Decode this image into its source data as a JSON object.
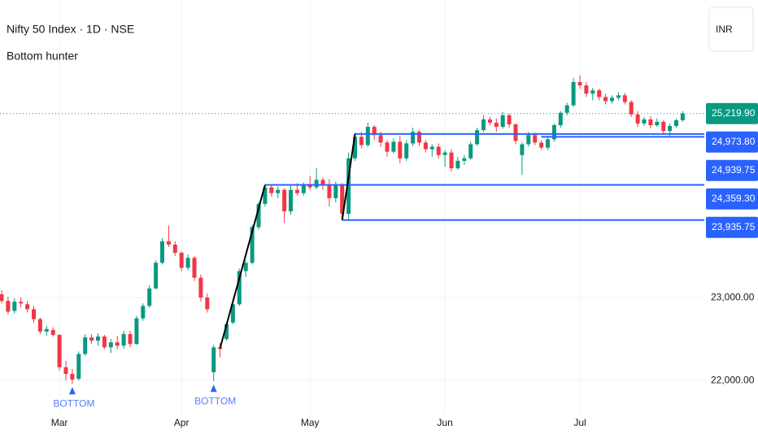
{
  "chart_data": {
    "type": "candlestick",
    "title": "Nifty 50 Index · 1D · NSE",
    "subtitle": "Bottom hunter",
    "currency": "INR",
    "up_color": "#089981",
    "down_color": "#f23645",
    "level_color": "#2962ff",
    "segment_color": "#000000",
    "ylim": [
      21590,
      26590
    ],
    "yticks": [
      {
        "value": 22000,
        "label": "22,000.00"
      },
      {
        "value": 23000,
        "label": "23,000.00"
      }
    ],
    "grid": true,
    "categories": [
      null,
      null,
      null,
      null,
      null,
      null,
      null,
      null,
      null,
      "Mar",
      null,
      null,
      null,
      null,
      null,
      null,
      null,
      null,
      null,
      null,
      null,
      null,
      null,
      null,
      null,
      null,
      null,
      null,
      "Apr",
      null,
      null,
      null,
      null,
      null,
      null,
      null,
      null,
      null,
      null,
      null,
      null,
      null,
      null,
      null,
      null,
      null,
      null,
      null,
      "May",
      null,
      null,
      null,
      null,
      null,
      null,
      null,
      null,
      null,
      null,
      null,
      null,
      null,
      null,
      null,
      null,
      null,
      null,
      null,
      null,
      "Jun",
      null,
      null,
      null,
      null,
      null,
      null,
      null,
      null,
      null,
      null,
      null,
      null,
      null,
      null,
      null,
      null,
      null,
      null,
      null,
      null,
      "Jul",
      null,
      null,
      null,
      null,
      null,
      null,
      null,
      null,
      null,
      null,
      null,
      null,
      null,
      null,
      null,
      null
    ],
    "open": [
      23040,
      22960,
      22840,
      22950,
      22920,
      22860,
      22740,
      22590,
      22610,
      22550,
      22160,
      22080,
      22020,
      22320,
      22520,
      22480,
      22530,
      22400,
      22460,
      22420,
      22560,
      22440,
      22750,
      22900,
      23110,
      23420,
      23680,
      23640,
      23540,
      23360,
      23480,
      23240,
      23000,
      22100,
      22400,
      22500,
      22700,
      22920,
      23320,
      23420,
      23850,
      24130,
      24330,
      24260,
      24300,
      24040,
      24300,
      24260,
      24350,
      24330,
      24420,
      24350,
      24200,
      24360,
      24010,
      24680,
      24940,
      24840,
      25060,
      24960,
      24870,
      24760,
      24880,
      24680,
      24860,
      25000,
      24870,
      24790,
      24820,
      24720,
      24750,
      24560,
      24650,
      24680,
      24850,
      25020,
      25150,
      25110,
      25060,
      25200,
      25090,
      24720,
      24850,
      24960,
      24870,
      24810,
      24910,
      25080,
      25230,
      25320,
      25600,
      25560,
      25460,
      25500,
      25420,
      25370,
      25410,
      25440,
      25360,
      25210,
      25100,
      25150,
      25080,
      25120,
      25010,
      25070,
      25140
    ],
    "high": [
      23090,
      23010,
      22990,
      23000,
      22960,
      22900,
      22760,
      22660,
      22640,
      22560,
      22240,
      22140,
      22350,
      22560,
      22560,
      22570,
      22550,
      22500,
      22540,
      22600,
      22600,
      22780,
      22930,
      23150,
      23450,
      23720,
      23870,
      23680,
      23560,
      23520,
      23500,
      23280,
      23050,
      22430,
      22450,
      22700,
      22950,
      23350,
      23450,
      23880,
      24150,
      24350,
      24360,
      24340,
      24320,
      24350,
      24380,
      24390,
      24470,
      24560,
      24450,
      24430,
      24400,
      24380,
      24750,
      24990,
      25000,
      25110,
      25080,
      25000,
      24900,
      24920,
      24950,
      24900,
      25050,
      25020,
      24900,
      24850,
      24860,
      24780,
      24790,
      24700,
      24720,
      24880,
      25050,
      25200,
      25180,
      25160,
      25240,
      25220,
      25100,
      24870,
      25000,
      24990,
      24900,
      24950,
      25100,
      25250,
      25350,
      25650,
      25680,
      25600,
      25530,
      25520,
      25460,
      25440,
      25480,
      25470,
      25380,
      25250,
      25180,
      25190,
      25160,
      25140,
      25100,
      25160,
      25250
    ],
    "low": [
      22930,
      22800,
      22810,
      22880,
      22820,
      22700,
      22560,
      22540,
      22530,
      22120,
      22000,
      21960,
      22000,
      22300,
      22440,
      22420,
      22380,
      22330,
      22380,
      22380,
      22400,
      22430,
      22720,
      22880,
      23100,
      23400,
      23610,
      23500,
      23320,
      23330,
      23200,
      22950,
      22820,
      21990,
      22280,
      22480,
      22680,
      22900,
      23250,
      23400,
      23820,
      24100,
      24220,
      24200,
      23900,
      24000,
      24230,
      24230,
      24300,
      24310,
      24300,
      24100,
      24150,
      23950,
      23935,
      24650,
      24800,
      24820,
      24900,
      24820,
      24700,
      24740,
      24620,
      24650,
      24830,
      24830,
      24750,
      24700,
      24680,
      24580,
      24520,
      24540,
      24600,
      24660,
      24830,
      25000,
      25080,
      25000,
      25040,
      25050,
      24850,
      24480,
      24820,
      24840,
      24780,
      24780,
      24880,
      25050,
      25200,
      25300,
      25520,
      25420,
      25380,
      25380,
      25330,
      25340,
      25380,
      25330,
      25180,
      25060,
      25070,
      25040,
      25060,
      24980,
      24940,
      25050,
      25120
    ],
    "close": [
      22960,
      22830,
      22950,
      22930,
      22860,
      22740,
      22590,
      22620,
      22550,
      22160,
      22080,
      22010,
      22320,
      22520,
      22480,
      22530,
      22400,
      22460,
      22420,
      22560,
      22440,
      22750,
      22900,
      23110,
      23420,
      23680,
      23640,
      23540,
      23360,
      23480,
      23240,
      23000,
      22860,
      22400,
      22380,
      22680,
      22920,
      23320,
      23420,
      23850,
      24130,
      24330,
      24260,
      24300,
      24040,
      24300,
      24260,
      24350,
      24330,
      24420,
      24350,
      24200,
      24360,
      24010,
      24680,
      24940,
      24840,
      25060,
      24960,
      24870,
      24760,
      24880,
      24680,
      24860,
      25000,
      24870,
      24790,
      24820,
      24720,
      24750,
      24560,
      24650,
      24680,
      24850,
      25020,
      25150,
      25110,
      25060,
      25200,
      25090,
      24890,
      24850,
      24960,
      24870,
      24810,
      24910,
      25080,
      25230,
      25320,
      25600,
      25560,
      25460,
      25500,
      25420,
      25370,
      25410,
      25440,
      25360,
      25210,
      25100,
      25150,
      25080,
      25120,
      25010,
      25070,
      25140,
      25219.9
    ],
    "markers": [
      {
        "index": 11,
        "label": "BOTTOM"
      },
      {
        "index": 33,
        "label": "BOTTOM"
      }
    ],
    "segments": [
      {
        "from": [
          34,
          22390
        ],
        "to": [
          41,
          24359.3
        ]
      },
      {
        "from": [
          53,
          23935.75
        ],
        "to": [
          55,
          24973.8
        ]
      }
    ],
    "last_price": {
      "value": 25219.9,
      "label": "25,219.90",
      "color": "#089981"
    },
    "levels": [
      {
        "value": 24973.8,
        "label": "24,973.80",
        "start": 55
      },
      {
        "value": 24939.75,
        "label": "24,939.75",
        "start": 84
      },
      {
        "value": 24359.3,
        "label": "24,359.30",
        "start": 41
      },
      {
        "value": 23935.75,
        "label": "23,935.75",
        "start": 53
      }
    ]
  }
}
